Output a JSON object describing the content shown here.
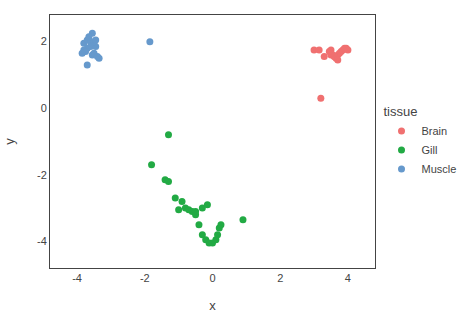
{
  "chart_data": {
    "type": "scatter",
    "xlabel": "x",
    "ylabel": "y",
    "legend_title": "tissue",
    "legend": "right",
    "grid": false,
    "marker": "circle",
    "xlim": [
      -4.8,
      4.8
    ],
    "ylim": [
      -4.8,
      2.8
    ],
    "xticks": [
      -4,
      -2,
      0,
      2,
      4
    ],
    "yticks": [
      -4,
      -2,
      0,
      2
    ],
    "series": [
      {
        "name": "Brain",
        "color": "#f07070",
        "x": [
          3.0,
          3.15,
          3.5,
          3.3,
          3.5,
          3.6,
          3.7,
          3.75,
          3.8,
          3.85,
          3.9,
          3.95,
          4.0,
          3.7,
          3.65,
          3.6,
          3.55,
          3.5,
          3.45,
          3.2
        ],
        "values": [
          1.75,
          1.75,
          1.75,
          1.55,
          1.6,
          1.55,
          1.6,
          1.65,
          1.7,
          1.75,
          1.8,
          1.8,
          1.75,
          1.45,
          1.5,
          1.55,
          1.6,
          1.65,
          1.7,
          0.3
        ]
      },
      {
        "name": "Gill",
        "color": "#22aa44",
        "x": [
          -1.3,
          -1.8,
          -1.4,
          -1.3,
          -1.1,
          -0.9,
          -0.8,
          -0.6,
          -0.5,
          -0.4,
          -0.3,
          -0.2,
          -0.1,
          0.0,
          0.1,
          0.15,
          0.2,
          0.25,
          0.9,
          -1.0,
          -0.7,
          -0.5,
          -0.3,
          -0.15
        ],
        "values": [
          -0.8,
          -1.7,
          -2.15,
          -2.2,
          -2.7,
          -2.8,
          -3.0,
          -3.1,
          -3.2,
          -3.5,
          -3.8,
          -3.95,
          -4.05,
          -4.05,
          -3.95,
          -3.8,
          -3.6,
          -3.5,
          -3.35,
          -3.05,
          -3.05,
          -3.1,
          -3.0,
          -2.9
        ]
      },
      {
        "name": "Muscle",
        "color": "#6699cc",
        "x": [
          -3.8,
          -3.7,
          -3.55,
          -3.6,
          -3.5,
          -3.45,
          -3.7,
          -3.8,
          -3.6,
          -3.5,
          -3.45,
          -3.75,
          -3.85,
          -3.65,
          -3.55,
          -3.5,
          -3.4,
          -3.35,
          -3.7,
          -1.85
        ],
        "values": [
          1.95,
          2.05,
          2.25,
          1.85,
          1.9,
          1.85,
          1.8,
          1.75,
          2.0,
          2.0,
          2.05,
          1.7,
          1.65,
          2.15,
          1.6,
          1.65,
          1.55,
          1.5,
          1.3,
          2.0
        ]
      }
    ]
  }
}
